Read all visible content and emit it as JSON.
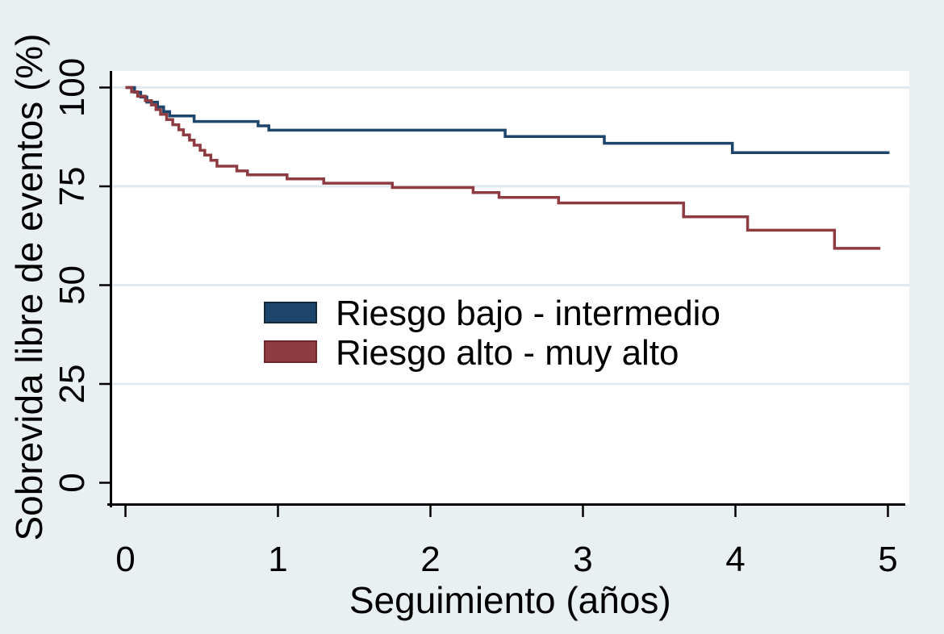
{
  "figure": {
    "background_color": "#e9f0f2",
    "plot_background_color": "#ffffff",
    "gridline_color": "#dfe9ef",
    "axis_color": "#000000",
    "text_color": "#000000"
  },
  "chart_data": {
    "type": "line",
    "subtype": "kaplan-meier-step",
    "title": "",
    "xlabel": "Seguimiento (años)",
    "ylabel": "Sobrevida libre de eventos (%)",
    "xlim": [
      0,
      5.12
    ],
    "ylim": [
      0,
      104.5
    ],
    "xticks": [
      0,
      1,
      2,
      3,
      4,
      5
    ],
    "yticks": [
      0,
      25,
      50,
      75,
      100
    ],
    "grid": "horizontal-only, gridlines at y=25,50,75,100, pale blue on white",
    "legend_position": "inside plot, left-center, no frame",
    "series": [
      {
        "name": "Riesgo bajo - intermedio",
        "color": "#1e456b",
        "swatch_border": "#12293f",
        "end_t": 5.01,
        "steps": [
          [
            0,
            100
          ],
          [
            0.06,
            98.8
          ],
          [
            0.1,
            97.6
          ],
          [
            0.14,
            96.3
          ],
          [
            0.21,
            95.1
          ],
          [
            0.25,
            93.9
          ],
          [
            0.29,
            92.8
          ],
          [
            0.45,
            91.4
          ],
          [
            0.87,
            90.3
          ],
          [
            0.94,
            89.2
          ],
          [
            2.49,
            87.6
          ],
          [
            3.14,
            85.9
          ],
          [
            3.98,
            83.5
          ]
        ]
      },
      {
        "name": "Riesgo alto - muy alto",
        "color": "#8e3b42",
        "swatch_border": "#6e262c",
        "end_t": 4.95,
        "steps": [
          [
            0,
            100
          ],
          [
            0.04,
            98.9
          ],
          [
            0.08,
            97.8
          ],
          [
            0.13,
            96.7
          ],
          [
            0.17,
            95.6
          ],
          [
            0.2,
            94.4
          ],
          [
            0.23,
            93.2
          ],
          [
            0.27,
            91.9
          ],
          [
            0.31,
            90.6
          ],
          [
            0.35,
            89.3
          ],
          [
            0.38,
            88.0
          ],
          [
            0.42,
            86.7
          ],
          [
            0.45,
            85.4
          ],
          [
            0.49,
            84.1
          ],
          [
            0.52,
            82.9
          ],
          [
            0.56,
            81.6
          ],
          [
            0.6,
            80.1
          ],
          [
            0.73,
            78.9
          ],
          [
            0.8,
            77.9
          ],
          [
            1.06,
            76.9
          ],
          [
            1.3,
            75.8
          ],
          [
            1.75,
            74.7
          ],
          [
            2.28,
            73.4
          ],
          [
            2.45,
            72.2
          ],
          [
            2.84,
            70.8
          ],
          [
            3.66,
            67.3
          ],
          [
            4.08,
            63.9
          ],
          [
            4.65,
            59.3
          ]
        ]
      }
    ]
  }
}
